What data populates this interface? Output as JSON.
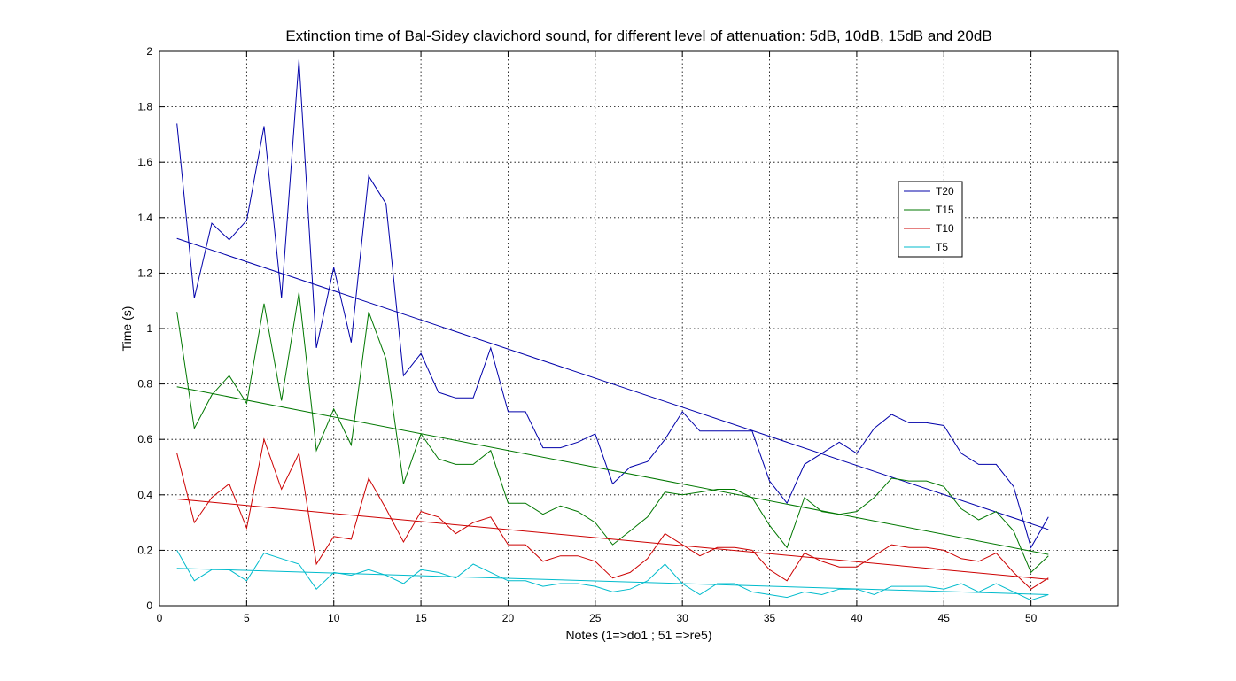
{
  "chart_data": {
    "type": "line",
    "title": "Extinction time of Bal-Sidey clavichord sound, for different level of attenuation: 5dB, 10dB, 15dB and 20dB",
    "xlabel": "Notes (1=>do1 ; 51 =>re5)",
    "ylabel": "Time (s)",
    "xlim": [
      0,
      55
    ],
    "ylim": [
      0,
      2
    ],
    "xticks": [
      0,
      5,
      10,
      15,
      20,
      25,
      30,
      35,
      40,
      45,
      50
    ],
    "yticks": [
      0,
      0.2,
      0.4,
      0.6,
      0.8,
      1,
      1.2,
      1.4,
      1.6,
      1.8,
      2
    ],
    "xtick_labels": [
      "0",
      "5",
      "10",
      "15",
      "20",
      "25",
      "30",
      "35",
      "40",
      "45",
      "50"
    ],
    "ytick_labels": [
      "0",
      "0.2",
      "0.4",
      "0.6",
      "0.8",
      "1",
      "1.2",
      "1.4",
      "1.6",
      "1.8",
      "2"
    ],
    "grid": true,
    "legend_position": "upper-right inside",
    "x": [
      1,
      2,
      3,
      4,
      5,
      6,
      7,
      8,
      9,
      10,
      11,
      12,
      13,
      14,
      15,
      16,
      17,
      18,
      19,
      20,
      21,
      22,
      23,
      24,
      25,
      26,
      27,
      28,
      29,
      30,
      31,
      32,
      33,
      34,
      35,
      36,
      37,
      38,
      39,
      40,
      41,
      42,
      43,
      44,
      45,
      46,
      47,
      48,
      49,
      50,
      51
    ],
    "series": [
      {
        "name": "T20",
        "color": "#0000aa",
        "values": [
          1.74,
          1.11,
          1.38,
          1.32,
          1.39,
          1.73,
          1.11,
          1.97,
          0.93,
          1.22,
          0.95,
          1.55,
          1.45,
          0.83,
          0.91,
          0.77,
          0.75,
          0.75,
          0.93,
          0.7,
          0.7,
          0.57,
          0.57,
          0.59,
          0.62,
          0.44,
          0.5,
          0.52,
          0.6,
          0.7,
          0.63,
          0.63,
          0.63,
          0.63,
          0.45,
          0.37,
          0.51,
          0.55,
          0.59,
          0.55,
          0.64,
          0.69,
          0.66,
          0.66,
          0.65,
          0.55,
          0.51,
          0.51,
          0.43,
          0.21,
          0.32
        ],
        "trend": [
          1.325,
          0.275
        ]
      },
      {
        "name": "T15",
        "color": "#007700",
        "values": [
          1.06,
          0.64,
          0.76,
          0.83,
          0.73,
          1.09,
          0.74,
          1.13,
          0.56,
          0.71,
          0.58,
          1.06,
          0.89,
          0.44,
          0.62,
          0.53,
          0.51,
          0.51,
          0.56,
          0.37,
          0.37,
          0.33,
          0.36,
          0.34,
          0.3,
          0.22,
          0.27,
          0.32,
          0.41,
          0.4,
          0.41,
          0.42,
          0.42,
          0.39,
          0.29,
          0.21,
          0.39,
          0.34,
          0.33,
          0.34,
          0.39,
          0.46,
          0.45,
          0.45,
          0.43,
          0.35,
          0.31,
          0.34,
          0.27,
          0.12,
          0.18
        ],
        "trend": [
          0.79,
          0.185
        ]
      },
      {
        "name": "T10",
        "color": "#cc0000",
        "values": [
          0.55,
          0.3,
          0.39,
          0.44,
          0.28,
          0.6,
          0.42,
          0.55,
          0.15,
          0.25,
          0.24,
          0.46,
          0.35,
          0.23,
          0.34,
          0.32,
          0.26,
          0.3,
          0.32,
          0.22,
          0.22,
          0.16,
          0.18,
          0.18,
          0.16,
          0.1,
          0.12,
          0.17,
          0.26,
          0.22,
          0.18,
          0.21,
          0.21,
          0.2,
          0.13,
          0.09,
          0.19,
          0.16,
          0.14,
          0.14,
          0.18,
          0.22,
          0.21,
          0.21,
          0.2,
          0.17,
          0.16,
          0.19,
          0.12,
          0.06,
          0.1
        ],
        "trend": [
          0.385,
          0.095
        ]
      },
      {
        "name": "T5",
        "color": "#00bbcc",
        "values": [
          0.2,
          0.09,
          0.13,
          0.13,
          0.09,
          0.19,
          0.17,
          0.15,
          0.06,
          0.12,
          0.11,
          0.13,
          0.11,
          0.08,
          0.13,
          0.12,
          0.1,
          0.15,
          0.12,
          0.09,
          0.09,
          0.07,
          0.08,
          0.08,
          0.07,
          0.05,
          0.06,
          0.09,
          0.15,
          0.08,
          0.04,
          0.08,
          0.08,
          0.05,
          0.04,
          0.03,
          0.05,
          0.04,
          0.06,
          0.06,
          0.04,
          0.07,
          0.07,
          0.07,
          0.06,
          0.08,
          0.05,
          0.08,
          0.05,
          0.02,
          0.04
        ],
        "trend": [
          0.135,
          0.04
        ]
      }
    ]
  }
}
